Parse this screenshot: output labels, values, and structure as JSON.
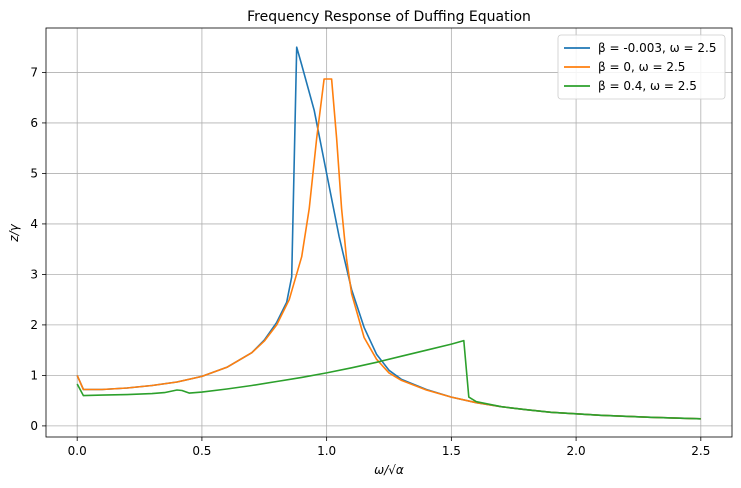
{
  "chart_data": {
    "type": "line",
    "title": "Frequency Response of Duffing Equation",
    "xlabel": "ω/√α",
    "ylabel": "z/γ",
    "xlim": [
      -0.125,
      2.625
    ],
    "ylim": [
      -0.22,
      7.88
    ],
    "xticks": [
      0.0,
      0.5,
      1.0,
      1.5,
      2.0,
      2.5
    ],
    "xtick_labels": [
      "0.0",
      "0.5",
      "1.0",
      "1.5",
      "2.0",
      "2.5"
    ],
    "yticks": [
      0,
      1,
      2,
      3,
      4,
      5,
      6,
      7
    ],
    "ytick_labels": [
      "0",
      "1",
      "2",
      "3",
      "4",
      "5",
      "6",
      "7"
    ],
    "grid": true,
    "legend_position": "upper-right",
    "series": [
      {
        "name": "β = -0.003, ω = 2.5",
        "color": "#1f77b4",
        "x": [
          0.0,
          0.025,
          0.1,
          0.2,
          0.3,
          0.4,
          0.5,
          0.6,
          0.7,
          0.75,
          0.8,
          0.84,
          0.86,
          0.88,
          0.9,
          0.95,
          1.0,
          1.05,
          1.1,
          1.15,
          1.2,
          1.25,
          1.3,
          1.4,
          1.5,
          1.6,
          1.7,
          1.8,
          1.9,
          2.0,
          2.1,
          2.2,
          2.3,
          2.4,
          2.5
        ],
        "y": [
          1.0,
          0.72,
          0.72,
          0.75,
          0.8,
          0.87,
          0.98,
          1.16,
          1.45,
          1.7,
          2.05,
          2.45,
          2.95,
          7.5,
          7.15,
          6.25,
          5.0,
          3.75,
          2.7,
          1.95,
          1.42,
          1.1,
          0.92,
          0.72,
          0.57,
          0.46,
          0.38,
          0.32,
          0.27,
          0.24,
          0.21,
          0.19,
          0.17,
          0.155,
          0.14
        ]
      },
      {
        "name": "β = 0, ω = 2.5",
        "color": "#ff7f0e",
        "x": [
          0.0,
          0.025,
          0.1,
          0.2,
          0.3,
          0.4,
          0.5,
          0.6,
          0.7,
          0.75,
          0.8,
          0.85,
          0.9,
          0.93,
          0.96,
          0.99,
          1.0,
          1.02,
          1.04,
          1.06,
          1.08,
          1.1,
          1.15,
          1.2,
          1.25,
          1.3,
          1.4,
          1.5,
          1.6,
          1.7,
          1.8,
          1.9,
          2.0,
          2.1,
          2.2,
          2.3,
          2.4,
          2.5
        ],
        "y": [
          1.0,
          0.72,
          0.72,
          0.75,
          0.8,
          0.87,
          0.98,
          1.16,
          1.45,
          1.68,
          2.0,
          2.5,
          3.35,
          4.3,
          5.7,
          6.87,
          6.87,
          6.87,
          5.7,
          4.3,
          3.3,
          2.62,
          1.75,
          1.32,
          1.05,
          0.9,
          0.71,
          0.57,
          0.46,
          0.38,
          0.32,
          0.27,
          0.24,
          0.21,
          0.19,
          0.17,
          0.155,
          0.14
        ]
      },
      {
        "name": "β = 0.4, ω = 2.5",
        "color": "#2ca02c",
        "x": [
          0.0,
          0.025,
          0.1,
          0.2,
          0.3,
          0.35,
          0.4,
          0.42,
          0.45,
          0.5,
          0.6,
          0.7,
          0.8,
          0.9,
          1.0,
          1.1,
          1.2,
          1.3,
          1.4,
          1.5,
          1.55,
          1.57,
          1.6,
          1.7,
          1.8,
          1.9,
          2.0,
          2.1,
          2.2,
          2.3,
          2.4,
          2.5
        ],
        "y": [
          0.83,
          0.6,
          0.61,
          0.62,
          0.64,
          0.66,
          0.71,
          0.7,
          0.65,
          0.67,
          0.73,
          0.8,
          0.88,
          0.96,
          1.05,
          1.15,
          1.26,
          1.38,
          1.5,
          1.62,
          1.69,
          0.57,
          0.48,
          0.38,
          0.32,
          0.27,
          0.24,
          0.21,
          0.19,
          0.17,
          0.155,
          0.14
        ]
      }
    ]
  }
}
